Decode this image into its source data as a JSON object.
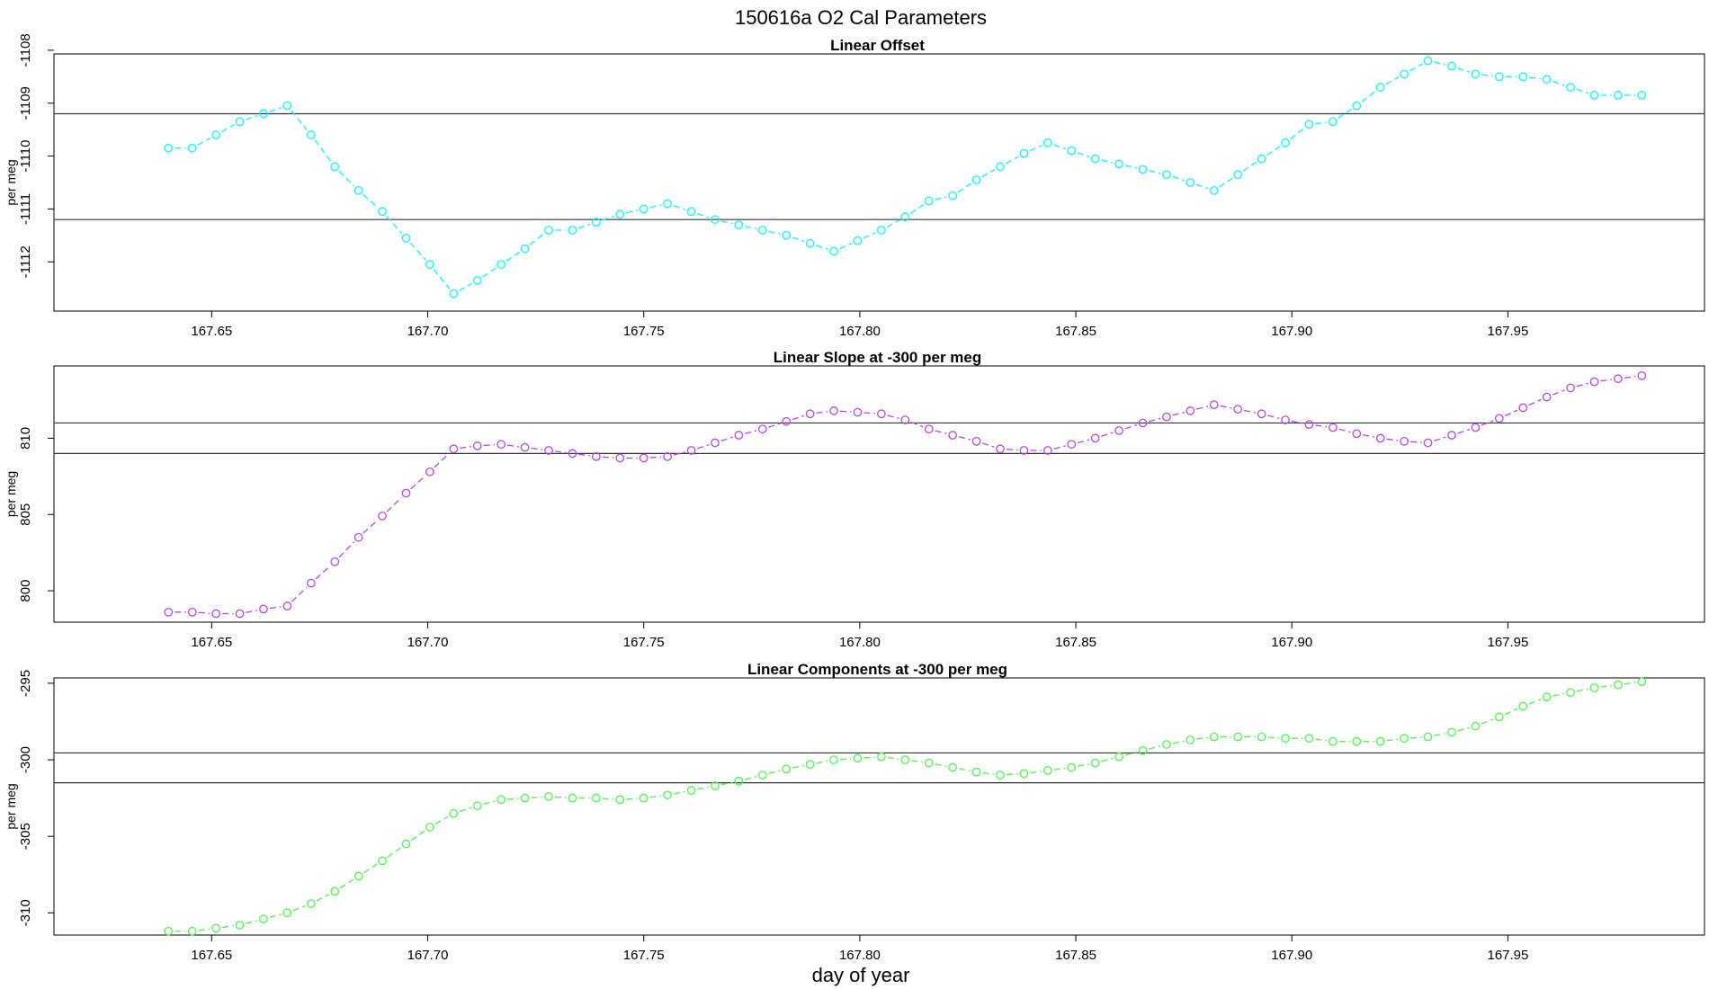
{
  "title": "150616a    O2 Cal Parameters",
  "xlabel": "day of year",
  "x_ticks": [
    "167.65",
    "167.70",
    "167.75",
    "167.80",
    "167.85",
    "167.90",
    "167.95"
  ],
  "chart_data": [
    {
      "type": "line",
      "title": "Linear Offset",
      "ylabel": "per meg",
      "color": "#00ffff",
      "xlim": [
        167.6135,
        167.9955
      ],
      "ylim": [
        -1112.93,
        -1108.07
      ],
      "y_ticks": [
        "-1112",
        "-1111",
        "-1110",
        "-1109",
        "-1108"
      ],
      "hlines": [
        -1109.2,
        -1111.2
      ],
      "x": [
        167.64,
        167.6455,
        167.651,
        167.6565,
        167.662,
        167.6675,
        167.673,
        167.6785,
        167.684,
        167.6895,
        167.695,
        167.7005,
        167.706,
        167.7115,
        167.717,
        167.7225,
        167.728,
        167.7335,
        167.739,
        167.7445,
        167.75,
        167.7555,
        167.761,
        167.7665,
        167.772,
        167.7775,
        167.783,
        167.7885,
        167.794,
        167.7995,
        167.805,
        167.8105,
        167.816,
        167.8215,
        167.827,
        167.8325,
        167.838,
        167.8435,
        167.849,
        167.8545,
        167.86,
        167.8655,
        167.871,
        167.8765,
        167.882,
        167.8875,
        167.893,
        167.8985,
        167.904,
        167.9095,
        167.915,
        167.9205,
        167.926,
        167.9315,
        167.937,
        167.9425,
        167.948,
        167.9535,
        167.959,
        167.9645,
        167.97,
        167.9755,
        167.981
      ],
      "values": [
        -1109.85,
        -1109.85,
        -1109.6,
        -1109.35,
        -1109.2,
        -1109.05,
        -1109.6,
        -1110.2,
        -1110.65,
        -1111.05,
        -1111.55,
        -1112.05,
        -1112.6,
        -1112.35,
        -1112.05,
        -1111.75,
        -1111.4,
        -1111.4,
        -1111.25,
        -1111.1,
        -1111.0,
        -1110.9,
        -1111.05,
        -1111.2,
        -1111.3,
        -1111.4,
        -1111.5,
        -1111.65,
        -1111.8,
        -1111.6,
        -1111.4,
        -1111.15,
        -1110.85,
        -1110.75,
        -1110.45,
        -1110.2,
        -1109.95,
        -1109.75,
        -1109.9,
        -1110.05,
        -1110.15,
        -1110.25,
        -1110.35,
        -1110.5,
        -1110.65,
        -1110.35,
        -1110.05,
        -1109.75,
        -1109.4,
        -1109.35,
        -1109.05,
        -1108.7,
        -1108.45,
        -1108.2,
        -1108.3,
        -1108.45,
        -1108.5,
        -1108.5,
        -1108.55,
        -1108.7,
        -1108.85,
        -1108.85,
        -1108.85
      ]
    },
    {
      "type": "line",
      "title": "Linear Slope at -300 per meg",
      "ylabel": "per meg",
      "color": "#bb44ee",
      "xlim": [
        167.6135,
        167.9955
      ],
      "ylim": [
        797.94,
        814.74
      ],
      "y_ticks": [
        "800",
        "805",
        "810"
      ],
      "hlines": [
        811.0,
        809.0
      ],
      "x": [
        167.64,
        167.6455,
        167.651,
        167.6565,
        167.662,
        167.6675,
        167.673,
        167.6785,
        167.684,
        167.6895,
        167.695,
        167.7005,
        167.706,
        167.7115,
        167.717,
        167.7225,
        167.728,
        167.7335,
        167.739,
        167.7445,
        167.75,
        167.7555,
        167.761,
        167.7665,
        167.772,
        167.7775,
        167.783,
        167.7885,
        167.794,
        167.7995,
        167.805,
        167.8105,
        167.816,
        167.8215,
        167.827,
        167.8325,
        167.838,
        167.8435,
        167.849,
        167.8545,
        167.86,
        167.8655,
        167.871,
        167.8765,
        167.882,
        167.8875,
        167.893,
        167.8985,
        167.904,
        167.9095,
        167.915,
        167.9205,
        167.926,
        167.9315,
        167.937,
        167.9425,
        167.948,
        167.9535,
        167.959,
        167.9645,
        167.97,
        167.9755,
        167.981
      ],
      "values": [
        798.6,
        798.6,
        798.5,
        798.5,
        798.8,
        799.0,
        800.5,
        801.9,
        803.5,
        804.9,
        806.4,
        807.8,
        809.3,
        809.5,
        809.6,
        809.4,
        809.2,
        809.0,
        808.8,
        808.7,
        808.7,
        808.8,
        809.2,
        809.7,
        810.2,
        810.6,
        811.1,
        811.6,
        811.8,
        811.7,
        811.6,
        811.2,
        810.6,
        810.2,
        809.8,
        809.3,
        809.2,
        809.2,
        809.6,
        810.0,
        810.5,
        811.0,
        811.4,
        811.8,
        812.2,
        811.9,
        811.6,
        811.2,
        810.9,
        810.7,
        810.3,
        810.0,
        809.8,
        809.7,
        810.2,
        810.7,
        811.3,
        812.0,
        812.7,
        813.3,
        813.7,
        813.9,
        814.1
      ]
    },
    {
      "type": "line",
      "title": "Linear Components at -300 per meg",
      "ylabel": "per meg",
      "color": "#44ff44",
      "xlim": [
        167.6135,
        167.9955
      ],
      "ylim": [
        -311.45,
        -294.65
      ],
      "y_ticks": [
        "-310",
        "-305",
        "-300",
        "-295"
      ],
      "hlines": [
        -299.55,
        -301.5
      ],
      "x": [
        167.64,
        167.6455,
        167.651,
        167.6565,
        167.662,
        167.6675,
        167.673,
        167.6785,
        167.684,
        167.6895,
        167.695,
        167.7005,
        167.706,
        167.7115,
        167.717,
        167.7225,
        167.728,
        167.7335,
        167.739,
        167.7445,
        167.75,
        167.7555,
        167.761,
        167.7665,
        167.772,
        167.7775,
        167.783,
        167.7885,
        167.794,
        167.7995,
        167.805,
        167.8105,
        167.816,
        167.8215,
        167.827,
        167.8325,
        167.838,
        167.8435,
        167.849,
        167.8545,
        167.86,
        167.8655,
        167.871,
        167.8765,
        167.882,
        167.8875,
        167.893,
        167.8985,
        167.904,
        167.9095,
        167.915,
        167.9205,
        167.926,
        167.9315,
        167.937,
        167.9425,
        167.948,
        167.9535,
        167.959,
        167.9645,
        167.97,
        167.9755,
        167.981
      ],
      "values": [
        -311.2,
        -311.2,
        -311.0,
        -310.8,
        -310.4,
        -310.0,
        -309.4,
        -308.6,
        -307.6,
        -306.6,
        -305.5,
        -304.4,
        -303.5,
        -303.0,
        -302.6,
        -302.5,
        -302.4,
        -302.5,
        -302.5,
        -302.6,
        -302.5,
        -302.3,
        -302.0,
        -301.7,
        -301.4,
        -301.0,
        -300.6,
        -300.3,
        -300.0,
        -299.9,
        -299.8,
        -300.0,
        -300.2,
        -300.5,
        -300.8,
        -301.0,
        -300.9,
        -300.7,
        -300.5,
        -300.2,
        -299.8,
        -299.4,
        -299.0,
        -298.7,
        -298.5,
        -298.5,
        -298.5,
        -298.6,
        -298.6,
        -298.8,
        -298.8,
        -298.8,
        -298.6,
        -298.5,
        -298.2,
        -297.8,
        -297.2,
        -296.5,
        -295.9,
        -295.6,
        -295.3,
        -295.1,
        -294.9
      ]
    }
  ]
}
